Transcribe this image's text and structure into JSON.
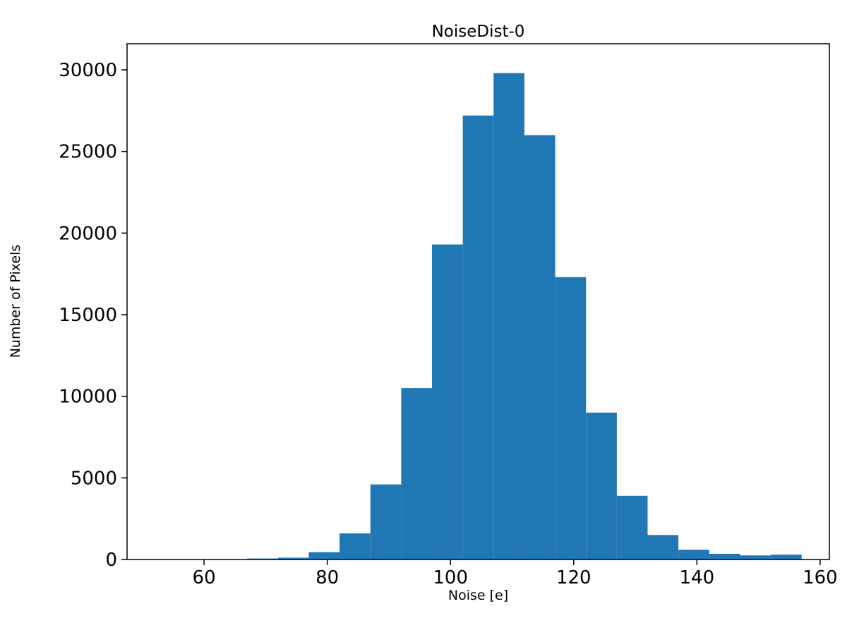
{
  "chart_data": {
    "type": "bar",
    "subtype": "histogram",
    "title": "NoiseDist-0",
    "xlabel": "Noise [e]",
    "ylabel": "Number of Pixels",
    "bin_edges": [
      67,
      72,
      77,
      82,
      87,
      92,
      97,
      102,
      107,
      112,
      117,
      122,
      127,
      132,
      137,
      142,
      147,
      152,
      157
    ],
    "values": [
      60,
      110,
      450,
      1600,
      4600,
      10500,
      19300,
      27200,
      29800,
      26000,
      17300,
      9000,
      3900,
      1500,
      600,
      350,
      250,
      300
    ],
    "xlim": [
      47.5,
      161.5
    ],
    "ylim": [
      0,
      31600
    ],
    "xticks": [
      60,
      80,
      100,
      120,
      140,
      160
    ],
    "yticks": [
      0,
      5000,
      10000,
      15000,
      20000,
      25000,
      30000
    ],
    "bar_color": "#1f77b4",
    "axis_color": "#000000",
    "background": "#ffffff",
    "grid": false,
    "legend": null
  }
}
